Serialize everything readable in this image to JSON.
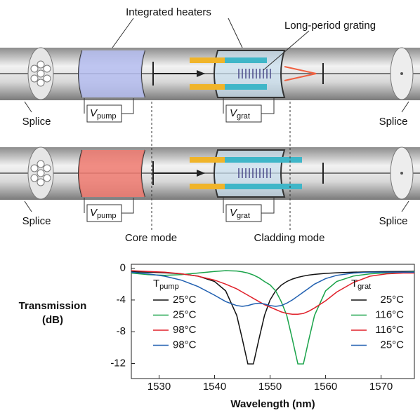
{
  "diagram": {
    "heaters_label": "Integrated heaters",
    "grating_label": "Long-period grating",
    "splices": [
      "Splice",
      "Splice",
      "Splice",
      "Splice"
    ],
    "voltages": [
      {
        "main": "V",
        "sub": "pump"
      },
      {
        "main": "V",
        "sub": "grat"
      },
      {
        "main": "V",
        "sub": "pump"
      },
      {
        "main": "V",
        "sub": "grat"
      }
    ],
    "core_mode": "Core mode",
    "cladding_mode": "Cladding mode"
  },
  "chart_data": {
    "type": "line",
    "ylabel": [
      "Transmission",
      "(dB)"
    ],
    "xlabel": "Wavelength (nm)",
    "legend_titles": [
      {
        "main": "T",
        "sub": "pump"
      },
      {
        "main": "T",
        "sub": "grat"
      }
    ],
    "x": [
      1525,
      1528,
      1531,
      1534,
      1537,
      1540,
      1542,
      1544,
      1545,
      1546,
      1547,
      1548,
      1549,
      1550,
      1551,
      1552,
      1553,
      1554,
      1555,
      1556,
      1557,
      1558,
      1560,
      1562,
      1565,
      1568,
      1571,
      1574,
      1576
    ],
    "series": [
      {
        "pump": "25°C",
        "grat": "25°C",
        "color": "#111111",
        "values": [
          -0.44,
          -0.49,
          -0.57,
          -0.7,
          -0.98,
          -1.67,
          -2.85,
          -5.94,
          -8.93,
          -12.05,
          -12.05,
          -8.93,
          -5.94,
          -4.0,
          -2.85,
          -2.13,
          -1.67,
          -1.36,
          -1.14,
          -0.98,
          -0.86,
          -0.77,
          -0.65,
          -0.57,
          -0.5,
          -0.45,
          -0.42,
          -0.4,
          -0.38
        ]
      },
      {
        "pump": "25°C",
        "grat": "116°C",
        "color": "#1aa34a",
        "values": [
          -0.6,
          -0.8,
          -0.9,
          -0.8,
          -0.6,
          -0.4,
          -0.3,
          -0.35,
          -0.45,
          -0.6,
          -0.85,
          -1.2,
          -1.67,
          -2.1,
          -2.85,
          -4.2,
          -5.94,
          -8.93,
          -12.05,
          -12.05,
          -8.93,
          -5.94,
          -2.85,
          -1.67,
          -0.98,
          -0.7,
          -0.57,
          -0.5,
          -0.45
        ]
      },
      {
        "pump": "98°C",
        "grat": "116°C",
        "color": "#e0202a",
        "values": [
          -0.3,
          -0.4,
          -0.5,
          -0.7,
          -1.0,
          -1.5,
          -2.0,
          -2.6,
          -3.0,
          -3.4,
          -3.8,
          -4.2,
          -4.6,
          -4.9,
          -5.2,
          -5.5,
          -5.7,
          -5.8,
          -5.8,
          -5.7,
          -5.4,
          -5.0,
          -4.1,
          -3.0,
          -1.8,
          -1.0,
          -0.7,
          -0.6,
          -0.6
        ]
      },
      {
        "pump": "98°C",
        "grat": "25°C",
        "color": "#1f5fb0",
        "values": [
          -0.5,
          -0.7,
          -1.0,
          -1.5,
          -2.3,
          -3.4,
          -4.2,
          -4.7,
          -4.8,
          -4.7,
          -4.5,
          -4.4,
          -4.5,
          -4.7,
          -4.8,
          -4.7,
          -4.4,
          -4.0,
          -3.5,
          -3.0,
          -2.5,
          -2.0,
          -1.3,
          -0.9,
          -0.6,
          -0.5,
          -0.5,
          -0.5,
          -0.5
        ]
      }
    ],
    "xlim": [
      1525,
      1576
    ],
    "ylim": [
      -13.9,
      0.5
    ],
    "xticks": [
      1530,
      1540,
      1550,
      1560,
      1570
    ],
    "yticks": [
      0,
      -4,
      -8,
      -12
    ]
  }
}
